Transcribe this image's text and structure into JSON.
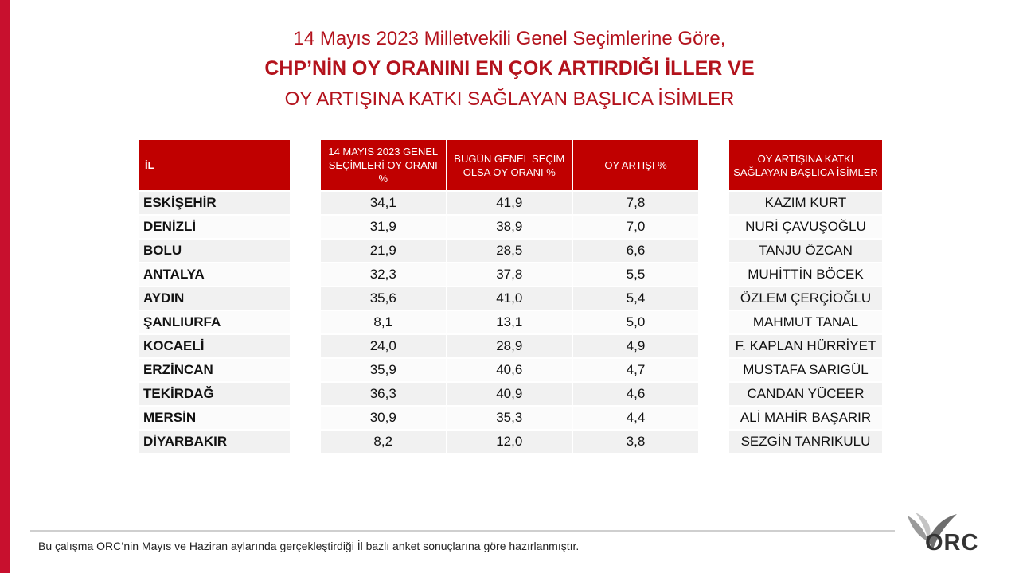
{
  "title": {
    "line1": "14 Mayıs 2023 Milletvekili Genel Seçimlerine Göre,",
    "line2": "CHP’NİN OY ORANINI EN ÇOK ARTIRDIĞI İLLER VE",
    "line3": "OY ARTIŞINA KATKI SAĞLAYAN BAŞLICA İSİMLER"
  },
  "headers": {
    "il": "İL",
    "may14": "14 MAYIS 2023 GENEL SEÇİMLERİ OY ORANI %",
    "today": "BUGÜN GENEL SEÇİM OLSA OY ORANI %",
    "increase": "OY ARTIŞI %",
    "names": "OY ARTIŞINA KATKI SAĞLAYAN BAŞLICA İSİMLER"
  },
  "rows": [
    {
      "il": "ESKİŞEHİR",
      "may14": "34,1",
      "today": "41,9",
      "increase": "7,8",
      "name": "KAZIM KURT"
    },
    {
      "il": "DENİZLİ",
      "may14": "31,9",
      "today": "38,9",
      "increase": "7,0",
      "name": "NURİ ÇAVUŞOĞLU"
    },
    {
      "il": "BOLU",
      "may14": "21,9",
      "today": "28,5",
      "increase": "6,6",
      "name": "TANJU ÖZCAN"
    },
    {
      "il": "ANTALYA",
      "may14": "32,3",
      "today": "37,8",
      "increase": "5,5",
      "name": "MUHİTTİN BÖCEK"
    },
    {
      "il": "AYDIN",
      "may14": "35,6",
      "today": "41,0",
      "increase": "5,4",
      "name": "ÖZLEM ÇERÇİOĞLU"
    },
    {
      "il": "ŞANLIURFA",
      "may14": "8,1",
      "today": "13,1",
      "increase": "5,0",
      "name": "MAHMUT TANAL"
    },
    {
      "il": "KOCAELİ",
      "may14": "24,0",
      "today": "28,9",
      "increase": "4,9",
      "name": "F. KAPLAN HÜRRİYET"
    },
    {
      "il": "ERZİNCAN",
      "may14": "35,9",
      "today": "40,6",
      "increase": "4,7",
      "name": "MUSTAFA SARIGÜL"
    },
    {
      "il": "TEKİRDAĞ",
      "may14": "36,3",
      "today": "40,9",
      "increase": "4,6",
      "name": "CANDAN YÜCEER"
    },
    {
      "il": "MERSİN",
      "may14": "30,9",
      "today": "35,3",
      "increase": "4,4",
      "name": "ALİ MAHİR BAŞARIR"
    },
    {
      "il": "DİYARBAKIR",
      "may14": "8,2",
      "today": "12,0",
      "increase": "3,8",
      "name": "SEZGİN TANRIKULU"
    }
  ],
  "footer": "Bu çalışma ORC’nin Mayıs ve Haziran aylarında gerçekleştirdiği İl bazlı anket sonuçlarına göre hazırlanmıştır.",
  "logo": {
    "text": "ORC",
    "icon": "orc-logo-icon"
  },
  "colors": {
    "accent": "#c00000",
    "title": "#b3121c"
  }
}
